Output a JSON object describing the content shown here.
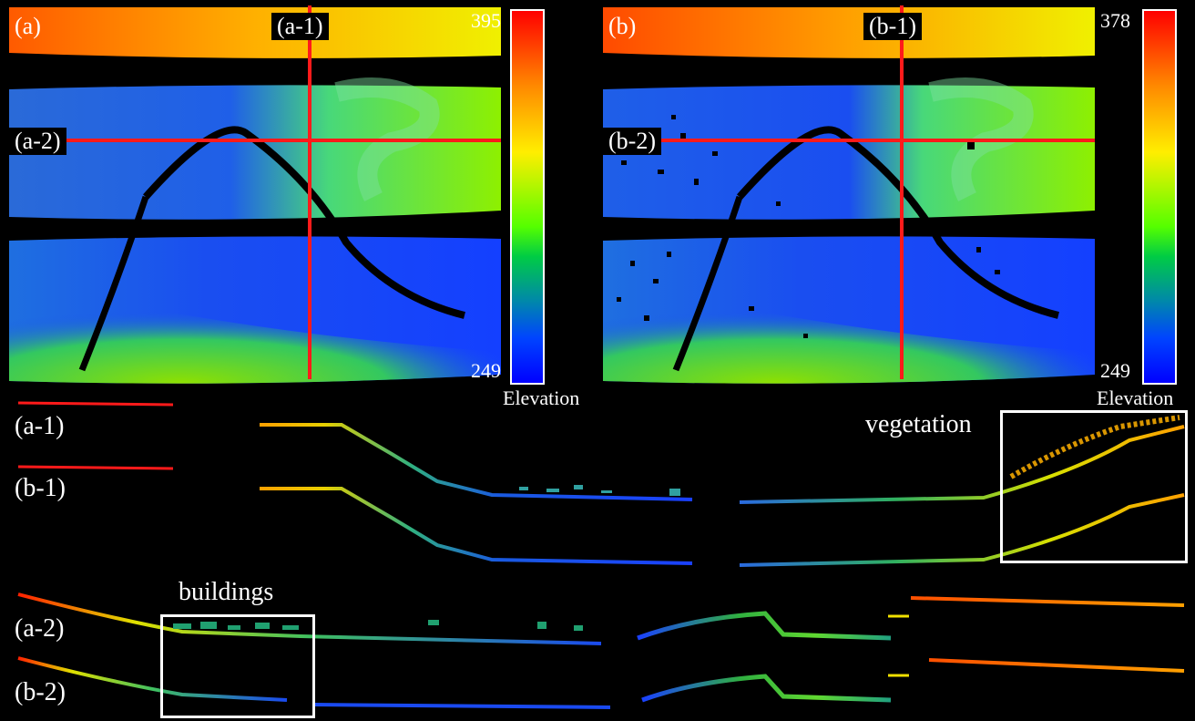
{
  "panel_a": {
    "label": "(a)",
    "cut1_label": "(a-1)",
    "cut2_label": "(a-2)",
    "colorbar_max": "395",
    "colorbar_min": "249",
    "colorbar_title": "Elevation"
  },
  "panel_b": {
    "label": "(b)",
    "cut1_label": "(b-1)",
    "cut2_label": "(b-2)",
    "colorbar_max": "378",
    "colorbar_min": "249",
    "colorbar_title": "Elevation"
  },
  "profiles": {
    "row_labels": [
      "(a-1)",
      "(b-1)",
      "(a-2)",
      "(b-2)"
    ],
    "annotation_vegetation": "vegetation",
    "annotation_buildings": "buildings"
  },
  "colors": {
    "cut_line": "#ff1a1a",
    "background": "#000000"
  }
}
